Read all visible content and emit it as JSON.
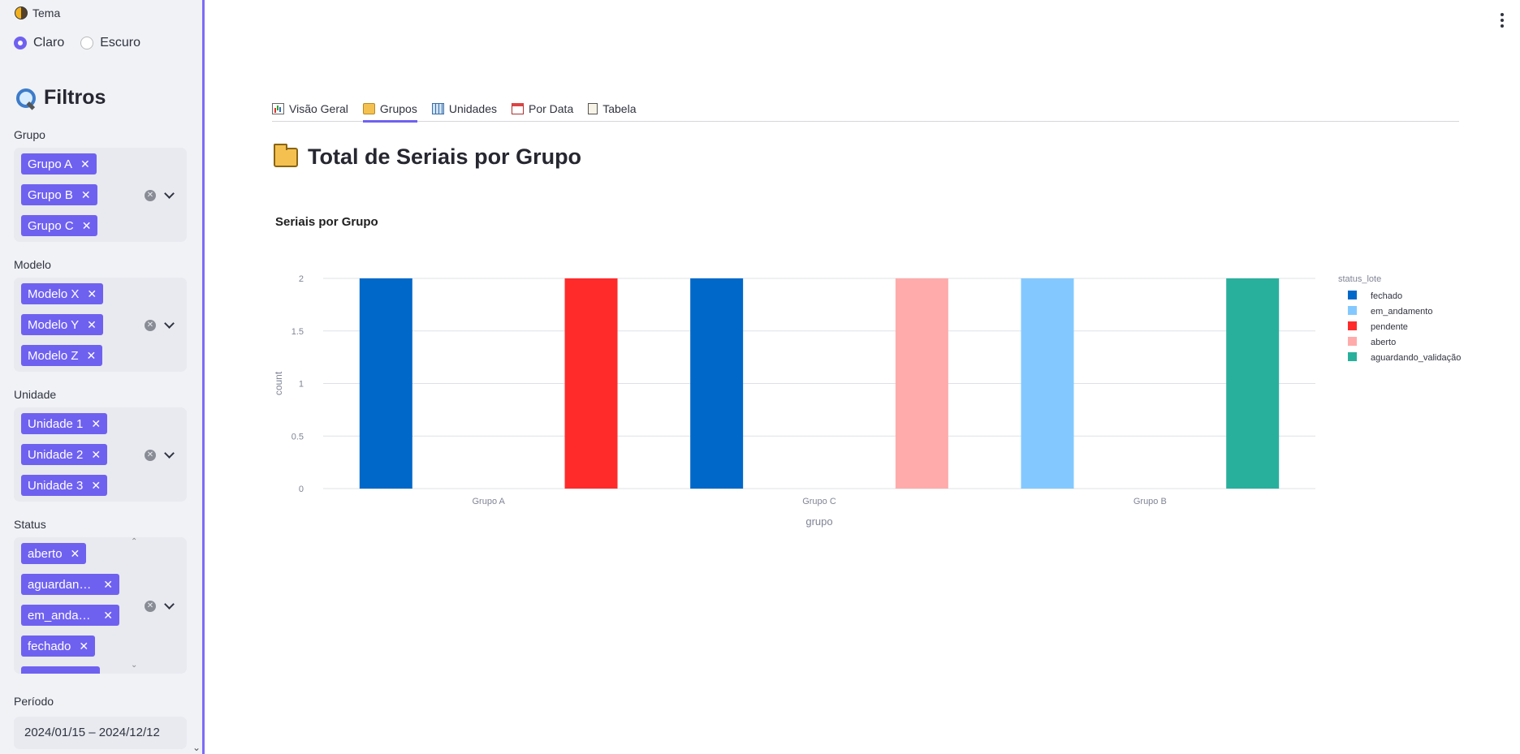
{
  "sidebar": {
    "tema_label": "Tema",
    "radio_claro": "Claro",
    "radio_escuro": "Escuro",
    "filtros_title": "Filtros",
    "grupo": {
      "label": "Grupo",
      "chips": [
        "Grupo A",
        "Grupo B",
        "Grupo C"
      ]
    },
    "modelo": {
      "label": "Modelo",
      "chips": [
        "Modelo X",
        "Modelo Y",
        "Modelo Z"
      ]
    },
    "unidade": {
      "label": "Unidade",
      "chips": [
        "Unidade 1",
        "Unidade 2",
        "Unidade 3"
      ]
    },
    "status": {
      "label": "Status",
      "chips": [
        "aberto",
        "aguardan…",
        "em_anda…",
        "fechado"
      ]
    },
    "periodo": {
      "label": "Período",
      "value": "2024/01/15 – 2024/12/12"
    }
  },
  "tabs": [
    {
      "label": "Visão Geral",
      "icon": "bar-chart-icon"
    },
    {
      "label": "Grupos",
      "icon": "folder-icon",
      "active": true
    },
    {
      "label": "Unidades",
      "icon": "grid-icon"
    },
    {
      "label": "Por Data",
      "icon": "calendar-icon"
    },
    {
      "label": "Tabela",
      "icon": "clipboard-icon"
    }
  ],
  "page_title": "Total de Seriais por Grupo",
  "chart_title": "Seriais por Grupo",
  "chart_data": {
    "type": "bar",
    "title": "Seriais por Grupo",
    "xlabel": "grupo",
    "ylabel": "count",
    "ylim": [
      0,
      2
    ],
    "yticks": [
      "0",
      "0.5",
      "1",
      "1.5",
      "2"
    ],
    "categories": [
      "Grupo A",
      "Grupo C",
      "Grupo B"
    ],
    "legend_title": "status_lote",
    "legend_position": "right",
    "grid": true,
    "series": [
      {
        "name": "fechado",
        "color": "#0068c9",
        "values": [
          2,
          2,
          0
        ]
      },
      {
        "name": "em_andamento",
        "color": "#83c9ff",
        "values": [
          0,
          0,
          2
        ]
      },
      {
        "name": "pendente",
        "color": "#ff2b2b",
        "values": [
          2,
          0,
          0
        ]
      },
      {
        "name": "aberto",
        "color": "#ffabab",
        "values": [
          0,
          2,
          0
        ]
      },
      {
        "name": "aguardando_validação",
        "color": "#29b09d",
        "values": [
          0,
          0,
          2
        ]
      }
    ]
  }
}
